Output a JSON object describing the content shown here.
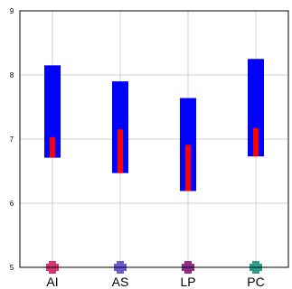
{
  "chart_data": {
    "type": "bar",
    "categories": [
      "AI",
      "AS",
      "LP",
      "PC"
    ],
    "series": [
      {
        "kind": "range",
        "color": "#0000ff",
        "low": [
          6.71,
          6.47,
          6.19,
          6.73
        ],
        "high": [
          8.15,
          7.9,
          7.64,
          8.25
        ]
      },
      {
        "kind": "range",
        "color": "#ff0000",
        "low": [
          6.71,
          6.47,
          6.19,
          6.73
        ],
        "high": [
          7.03,
          7.15,
          6.91,
          7.17
        ]
      }
    ],
    "marker_colors": [
      "#d6336c",
      "#6a5acd",
      "#8e2c8e",
      "#2a9d8f"
    ],
    "y_ticks": [
      "5",
      "6",
      "7",
      "8",
      "9"
    ],
    "ylim": [
      5,
      9
    ],
    "grid": true,
    "title": "",
    "xlabel": "",
    "ylabel": ""
  }
}
